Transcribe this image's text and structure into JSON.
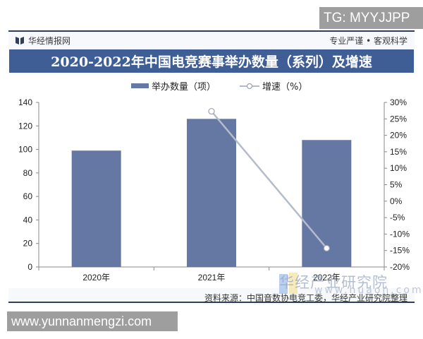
{
  "watermark_top": "TG: MYYJJPP",
  "watermark_bottom": "www.yunnanmengzi.com",
  "header": {
    "brand": "华经情报网",
    "slogan": "专业严谨 • 客观科学",
    "title": "2020-2022年中国电竞赛事举办数量（系列）及增速"
  },
  "legend": {
    "bar_label": "举办数量（项）",
    "line_label": "增速（%）"
  },
  "footer": {
    "source": "资料来源：中国音数协电竞工委，华经产业研究院整理",
    "watermark_brand": "华经产业研究院",
    "watermark_url": "www.huaon.com"
  },
  "colors": {
    "title_band": "#3f5e96",
    "bar": "#6577a3",
    "line": "#b4bccb"
  },
  "chart_data": {
    "type": "bar",
    "title": "2020-2022年中国电竞赛事举办数量（系列）及增速",
    "categories": [
      "2020年",
      "2021年",
      "2022年"
    ],
    "series": [
      {
        "name": "举办数量（项）",
        "type": "bar",
        "axis": "left",
        "values": [
          99,
          126,
          108
        ]
      },
      {
        "name": "增速（%）",
        "type": "line",
        "axis": "right",
        "values": [
          null,
          27.3,
          -14.3
        ]
      }
    ],
    "left_axis": {
      "ylim": [
        0,
        140
      ],
      "ticks": [
        "0",
        "20",
        "40",
        "60",
        "80",
        "100",
        "120",
        "140"
      ]
    },
    "right_axis": {
      "ylim": [
        -20,
        30
      ],
      "ticks": [
        "-20%",
        "-15%",
        "-10%",
        "-5%",
        "0%",
        "5%",
        "10%",
        "15%",
        "20%",
        "25%",
        "30%"
      ]
    },
    "xlabel": "",
    "ylabel": "",
    "grid": false,
    "legend_position": "top"
  }
}
